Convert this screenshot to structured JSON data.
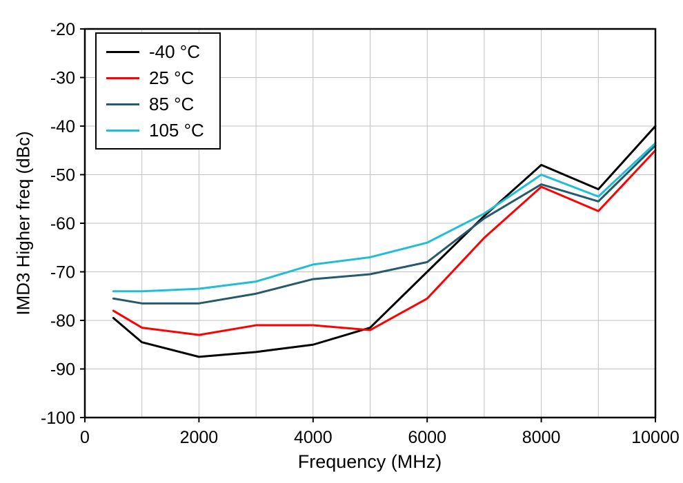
{
  "chart_data": {
    "type": "line",
    "title": "",
    "xlabel": "Frequency (MHz)",
    "ylabel": "IMD3 Higher freq (dBc)",
    "xlim": [
      0,
      10000
    ],
    "ylim": [
      -100,
      -20
    ],
    "x_ticks": [
      0,
      2000,
      4000,
      6000,
      8000,
      10000
    ],
    "y_ticks": [
      -100,
      -90,
      -80,
      -70,
      -60,
      -50,
      -40,
      -30,
      -20
    ],
    "x_grid_step": 1000,
    "y_grid_step": 10,
    "grid": true,
    "legend_position": "top-left",
    "x": [
      500,
      1000,
      2000,
      3000,
      4000,
      5000,
      6000,
      7000,
      8000,
      9000,
      10000
    ],
    "series": [
      {
        "name": "-40 °C",
        "color": "#000000",
        "values": [
          -79.5,
          -84.5,
          -87.5,
          -86.5,
          -85,
          -81.5,
          -70,
          -58.5,
          -48,
          -53,
          -40
        ]
      },
      {
        "name": "25 °C",
        "color": "#ff0000",
        "values": [
          -78,
          -81.5,
          -83,
          -81,
          -81,
          -82,
          -75.5,
          -63,
          -52.5,
          -57.5,
          -45
        ]
      },
      {
        "name": "85 °C",
        "color": "#245a6c",
        "values": [
          -75.5,
          -76.5,
          -76.5,
          -74.5,
          -71.5,
          -70.5,
          -68,
          -59,
          -52,
          -55.5,
          -44
        ]
      },
      {
        "name": "105 °C",
        "color": "#1fbed6",
        "values": [
          -74,
          -74,
          -73.5,
          -72,
          -68.5,
          -67,
          -64,
          -58,
          -50,
          -54.5,
          -43.5
        ]
      }
    ]
  },
  "colors": {
    "grid": "#c0c0c0",
    "axis": "#000000",
    "background": "#ffffff"
  }
}
